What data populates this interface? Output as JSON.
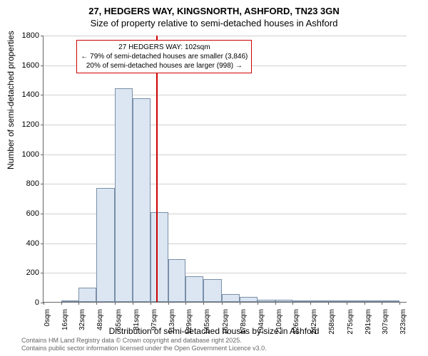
{
  "title_main": "27, HEDGERS WAY, KINGSNORTH, ASHFORD, TN23 3GN",
  "title_sub": "Size of property relative to semi-detached houses in Ashford",
  "y_axis_label": "Number of semi-detached properties",
  "x_axis_label": "Distribution of semi-detached houses by size in Ashford",
  "footer_line1": "Contains HM Land Registry data © Crown copyright and database right 2025.",
  "footer_line2": "Contains public sector information licensed under the Open Government Licence v3.0.",
  "chart": {
    "type": "histogram",
    "x_min": 0,
    "x_max": 330,
    "y_min": 0,
    "y_max": 1800,
    "y_ticks": [
      0,
      200,
      400,
      600,
      800,
      1000,
      1200,
      1400,
      1600,
      1800
    ],
    "x_ticks": [
      {
        "v": 0,
        "label": "0sqm"
      },
      {
        "v": 16,
        "label": "16sqm"
      },
      {
        "v": 32,
        "label": "32sqm"
      },
      {
        "v": 48,
        "label": "48sqm"
      },
      {
        "v": 65,
        "label": "65sqm"
      },
      {
        "v": 81,
        "label": "81sqm"
      },
      {
        "v": 97,
        "label": "97sqm"
      },
      {
        "v": 113,
        "label": "113sqm"
      },
      {
        "v": 129,
        "label": "129sqm"
      },
      {
        "v": 145,
        "label": "145sqm"
      },
      {
        "v": 162,
        "label": "162sqm"
      },
      {
        "v": 178,
        "label": "178sqm"
      },
      {
        "v": 194,
        "label": "194sqm"
      },
      {
        "v": 210,
        "label": "210sqm"
      },
      {
        "v": 226,
        "label": "226sqm"
      },
      {
        "v": 242,
        "label": "242sqm"
      },
      {
        "v": 258,
        "label": "258sqm"
      },
      {
        "v": 275,
        "label": "275sqm"
      },
      {
        "v": 291,
        "label": "291sqm"
      },
      {
        "v": 307,
        "label": "307sqm"
      },
      {
        "v": 323,
        "label": "323sqm"
      }
    ],
    "bars": [
      {
        "x0": 16,
        "x1": 32,
        "y": 5
      },
      {
        "x0": 32,
        "x1": 48,
        "y": 95
      },
      {
        "x0": 48,
        "x1": 65,
        "y": 770
      },
      {
        "x0": 65,
        "x1": 81,
        "y": 1440
      },
      {
        "x0": 81,
        "x1": 97,
        "y": 1375
      },
      {
        "x0": 97,
        "x1": 113,
        "y": 605
      },
      {
        "x0": 113,
        "x1": 129,
        "y": 290
      },
      {
        "x0": 129,
        "x1": 145,
        "y": 175
      },
      {
        "x0": 145,
        "x1": 162,
        "y": 155
      },
      {
        "x0": 162,
        "x1": 178,
        "y": 55
      },
      {
        "x0": 178,
        "x1": 194,
        "y": 35
      },
      {
        "x0": 194,
        "x1": 210,
        "y": 15
      },
      {
        "x0": 210,
        "x1": 226,
        "y": 15
      },
      {
        "x0": 226,
        "x1": 242,
        "y": 8
      },
      {
        "x0": 242,
        "x1": 258,
        "y": 5
      },
      {
        "x0": 258,
        "x1": 275,
        "y": 3
      },
      {
        "x0": 275,
        "x1": 291,
        "y": 5
      },
      {
        "x0": 291,
        "x1": 307,
        "y": 0
      },
      {
        "x0": 307,
        "x1": 323,
        "y": 3
      }
    ],
    "bar_fill": "#dce6f2",
    "bar_stroke": "#7a8fa8",
    "grid_color": "#d0d0d0",
    "marker": {
      "x": 102,
      "color": "#cc0000"
    },
    "annotation": {
      "line1": "27 HEDGERS WAY: 102sqm",
      "line2": "← 79% of semi-detached houses are smaller (3,846)",
      "line3": "20% of semi-detached houses are larger (998) →",
      "border_color": "#cc0000",
      "x": 30,
      "y_top": 1770
    }
  }
}
